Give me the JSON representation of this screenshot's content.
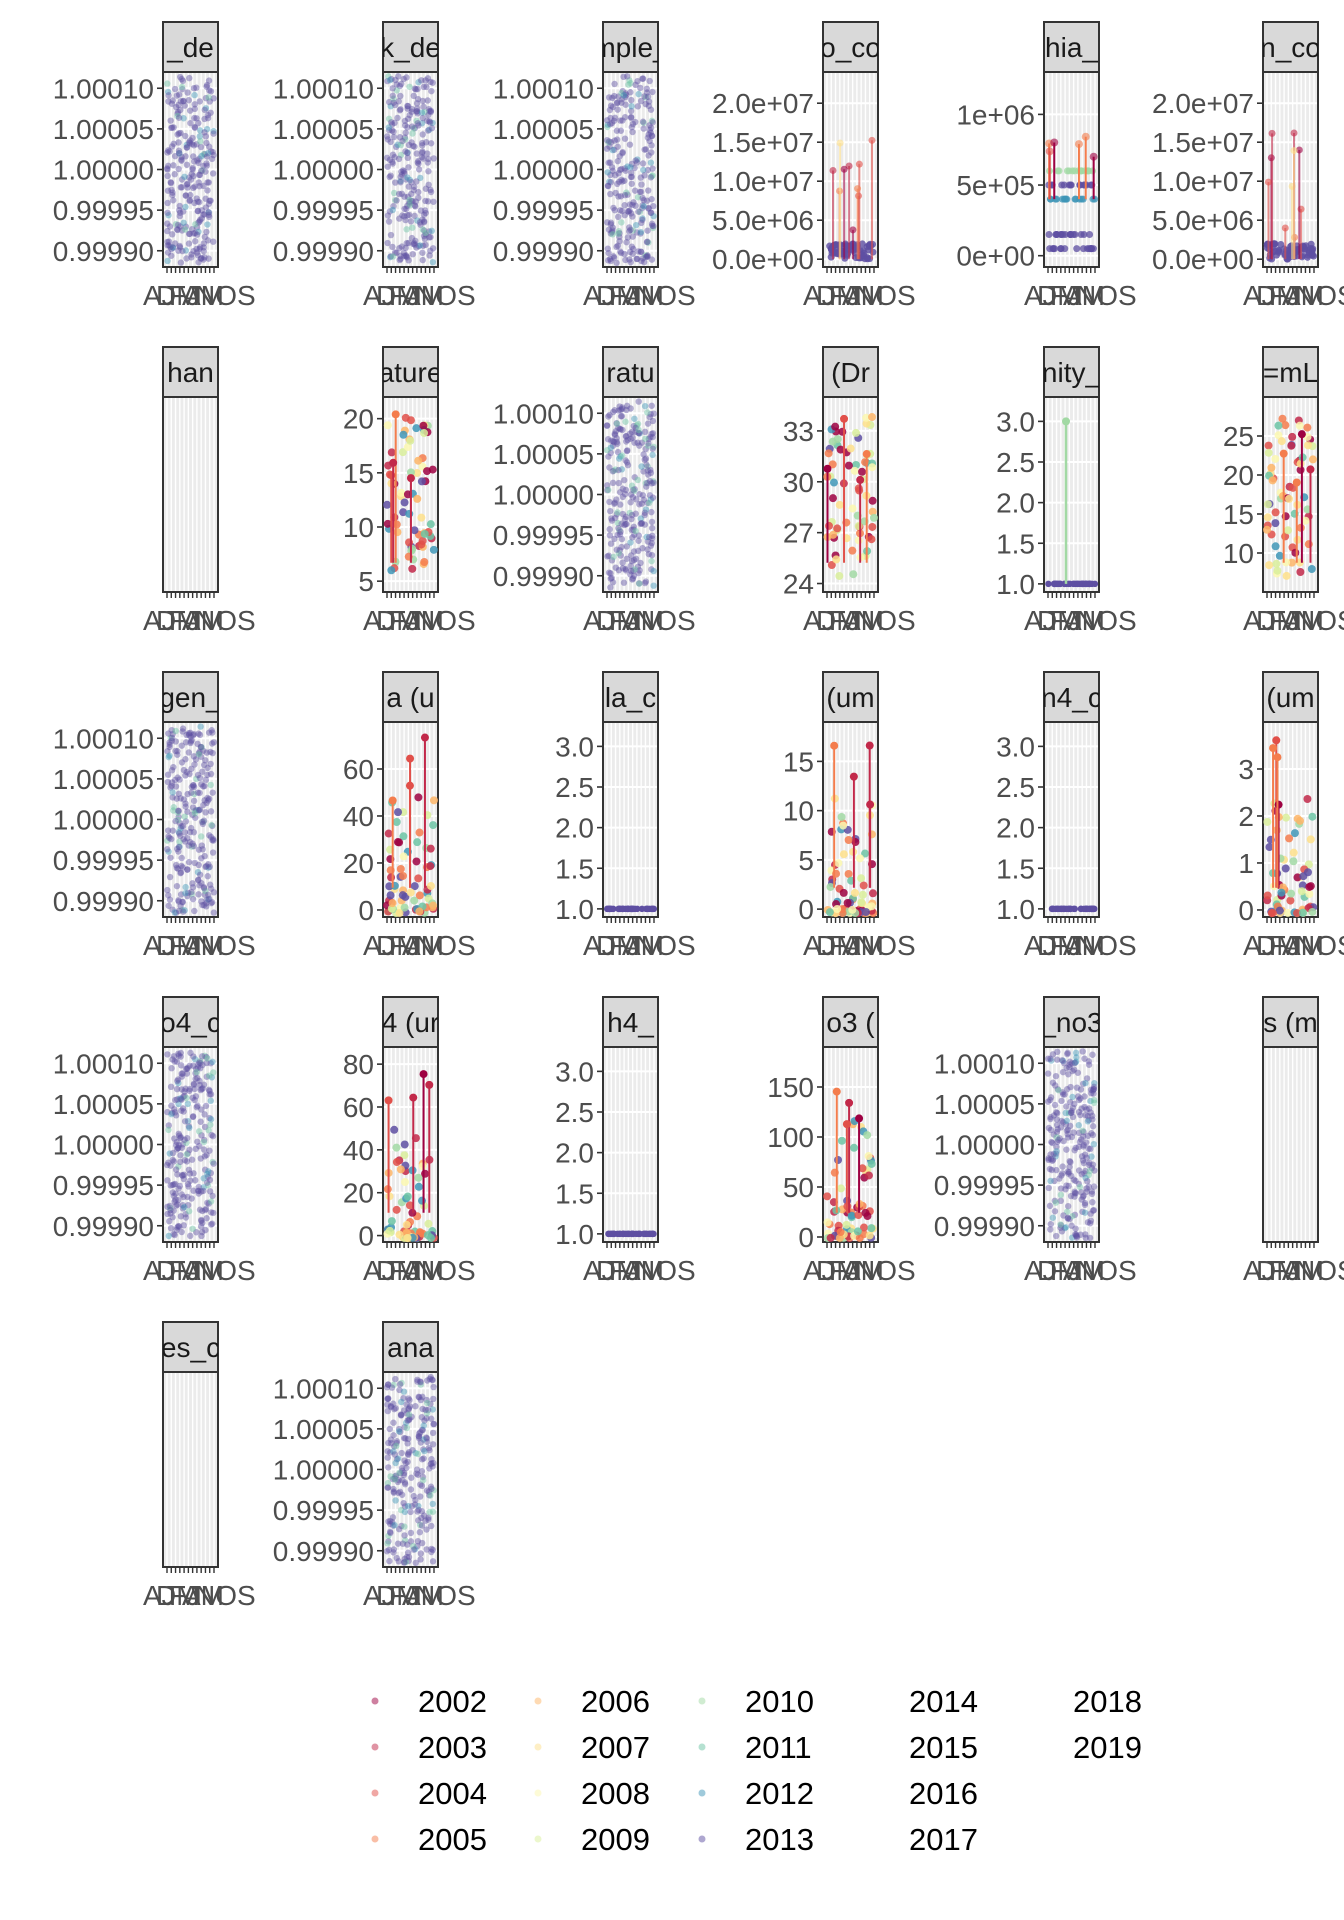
{
  "colors": {
    "panel_bg": "#ebebeb",
    "grid": "#ffffff",
    "strip_bg": "#d9d9d9",
    "strip_border": "#333333",
    "axis_text": "#4d4d4d"
  },
  "chart_data": {
    "type": "scatter",
    "layout": {
      "rows": 5,
      "cols": 6
    },
    "legend": {
      "placement": "bottom",
      "entries": [
        {
          "label": "2002",
          "color": "#9e0142"
        },
        {
          "label": "2003",
          "color": "#c2294a"
        },
        {
          "label": "2004",
          "color": "#e1504a"
        },
        {
          "label": "2005",
          "color": "#f47d4d"
        },
        {
          "label": "2006",
          "color": "#fdb567"
        },
        {
          "label": "2007",
          "color": "#fee08b"
        },
        {
          "label": "2008",
          "color": "#fbf8b0"
        },
        {
          "label": "2009",
          "color": "#d9ef9b"
        },
        {
          "label": "2010",
          "color": "#a2d9a4"
        },
        {
          "label": "2011",
          "color": "#6cc4a4"
        },
        {
          "label": "2012",
          "color": "#3f96b7"
        },
        {
          "label": "2013",
          "color": "#5e4fa2"
        },
        {
          "label": "2014",
          "color": ""
        },
        {
          "label": "2015",
          "color": ""
        },
        {
          "label": "2016",
          "color": ""
        },
        {
          "label": "2017",
          "color": ""
        },
        {
          "label": "2018",
          "color": ""
        },
        {
          "label": "2019",
          "color": ""
        }
      ]
    },
    "x_tick_text": "AJDMFJAMNOS",
    "x_tick_count": 12,
    "panels": [
      {
        "strip": "_de",
        "ylim": [
          0.99988,
          1.00012
        ],
        "ticks": [
          "1.00010",
          "1.00005",
          "1.00000",
          "0.99995",
          "0.99990"
        ],
        "tick_values": [
          1.0001,
          1.00005,
          1.0,
          0.99995,
          0.9999
        ],
        "style": "dense"
      },
      {
        "strip": "k_de",
        "ylim": [
          0.99988,
          1.00012
        ],
        "ticks": [
          "1.00010",
          "1.00005",
          "1.00000",
          "0.99995",
          "0.99990"
        ],
        "tick_values": [
          1.0001,
          1.00005,
          1.0,
          0.99995,
          0.9999
        ],
        "style": "dense"
      },
      {
        "strip": "mple_",
        "ylim": [
          0.99988,
          1.00012
        ],
        "ticks": [
          "1.00010",
          "1.00005",
          "1.00000",
          "0.99995",
          "0.99990"
        ],
        "tick_values": [
          1.0001,
          1.00005,
          1.0,
          0.99995,
          0.9999
        ],
        "style": "dense"
      },
      {
        "strip": "o_co",
        "ylim": [
          -1000000,
          24000000
        ],
        "ticks": [
          "2.0e+07",
          "1.5e+07",
          "1.0e+07",
          "5.0e+06",
          "0.0e+00"
        ],
        "tick_values": [
          20000000,
          15000000,
          10000000,
          5000000,
          0
        ],
        "style": "lowspikes"
      },
      {
        "strip": "hia_",
        "ylim": [
          -80000,
          1300000
        ],
        "ticks": [
          "1e+06",
          "5e+05",
          "0e+00"
        ],
        "tick_values": [
          1000000,
          500000,
          0
        ],
        "style": "bands"
      },
      {
        "strip": "n_co",
        "ylim": [
          -1000000,
          24000000
        ],
        "ticks": [
          "2.0e+07",
          "1.5e+07",
          "1.0e+07",
          "5.0e+06",
          "0.0e+00"
        ],
        "tick_values": [
          20000000,
          15000000,
          10000000,
          5000000,
          0
        ],
        "style": "lowspikes"
      },
      {
        "strip": "han",
        "ylim": [
          0,
          1
        ],
        "ticks": [],
        "tick_values": [],
        "style": "empty"
      },
      {
        "strip": "ature",
        "ylim": [
          4,
          22
        ],
        "ticks": [
          "20",
          "15",
          "10",
          "5"
        ],
        "tick_values": [
          20,
          15,
          10,
          5
        ],
        "style": "scatter"
      },
      {
        "strip": "ratu",
        "ylim": [
          0.99988,
          1.00012
        ],
        "ticks": [
          "1.00010",
          "1.00005",
          "1.00000",
          "0.99995",
          "0.99990"
        ],
        "tick_values": [
          1.0001,
          1.00005,
          1.0,
          0.99995,
          0.9999
        ],
        "style": "dense"
      },
      {
        "strip": "(Dr",
        "ylim": [
          23.5,
          35
        ],
        "ticks": [
          "33",
          "30",
          "27",
          "24"
        ],
        "tick_values": [
          33,
          30,
          27,
          24
        ],
        "style": "scatter"
      },
      {
        "strip": "nity_",
        "ylim": [
          0.9,
          3.3
        ],
        "ticks": [
          "3.0",
          "2.5",
          "2.0",
          "1.5",
          "1.0"
        ],
        "tick_values": [
          3.0,
          2.5,
          2.0,
          1.5,
          1.0
        ],
        "style": "flat"
      },
      {
        "strip": "=mL",
        "ylim": [
          5,
          30
        ],
        "ticks": [
          "25",
          "20",
          "15",
          "10"
        ],
        "tick_values": [
          25,
          20,
          15,
          10
        ],
        "style": "scatter"
      },
      {
        "strip": "gen_",
        "ylim": [
          0.99988,
          1.00012
        ],
        "ticks": [
          "1.00010",
          "1.00005",
          "1.00000",
          "0.99995",
          "0.99990"
        ],
        "tick_values": [
          1.0001,
          1.00005,
          1.0,
          0.99995,
          0.9999
        ],
        "style": "dense"
      },
      {
        "strip": "a (u",
        "ylim": [
          -3,
          80
        ],
        "ticks": [
          "60",
          "40",
          "20",
          "0"
        ],
        "tick_values": [
          60,
          40,
          20,
          0
        ],
        "style": "lowscatter"
      },
      {
        "strip": "la_c",
        "ylim": [
          0.9,
          3.3
        ],
        "ticks": [
          "3.0",
          "2.5",
          "2.0",
          "1.5",
          "1.0"
        ],
        "tick_values": [
          3.0,
          2.5,
          2.0,
          1.5,
          1.0
        ],
        "style": "flat"
      },
      {
        "strip": "(um",
        "ylim": [
          -0.8,
          19
        ],
        "ticks": [
          "15",
          "10",
          "5",
          "0"
        ],
        "tick_values": [
          15,
          10,
          5,
          0
        ],
        "style": "lowscatter"
      },
      {
        "strip": "n4_c",
        "ylim": [
          0.9,
          3.3
        ],
        "ticks": [
          "3.0",
          "2.5",
          "2.0",
          "1.5",
          "1.0"
        ],
        "tick_values": [
          3.0,
          2.5,
          2.0,
          1.5,
          1.0
        ],
        "style": "flat"
      },
      {
        "strip": "(um",
        "ylim": [
          -0.15,
          4.0
        ],
        "ticks": [
          "3",
          "2",
          "1",
          "0"
        ],
        "tick_values": [
          3,
          2,
          1,
          0
        ],
        "style": "lowscatter"
      },
      {
        "strip": "o4_c",
        "ylim": [
          0.99988,
          1.00012
        ],
        "ticks": [
          "1.00010",
          "1.00005",
          "1.00000",
          "0.99995",
          "0.99990"
        ],
        "tick_values": [
          1.0001,
          1.00005,
          1.0,
          0.99995,
          0.9999
        ],
        "style": "dense"
      },
      {
        "strip": "4 (ur",
        "ylim": [
          -3,
          88
        ],
        "ticks": [
          "80",
          "60",
          "40",
          "20",
          "0"
        ],
        "tick_values": [
          80,
          60,
          40,
          20,
          0
        ],
        "style": "lowscatter"
      },
      {
        "strip": "h4_",
        "ylim": [
          0.9,
          3.3
        ],
        "ticks": [
          "3.0",
          "2.5",
          "2.0",
          "1.5",
          "1.0"
        ],
        "tick_values": [
          3.0,
          2.5,
          2.0,
          1.5,
          1.0
        ],
        "style": "flat"
      },
      {
        "strip": "o3 (",
        "ylim": [
          -5,
          190
        ],
        "ticks": [
          "150",
          "100",
          "50",
          "0"
        ],
        "tick_values": [
          150,
          100,
          50,
          0
        ],
        "style": "lowscatter"
      },
      {
        "strip": "_no3",
        "ylim": [
          0.99988,
          1.00012
        ],
        "ticks": [
          "1.00010",
          "1.00005",
          "1.00000",
          "0.99995",
          "0.99990"
        ],
        "tick_values": [
          1.0001,
          1.00005,
          1.0,
          0.99995,
          0.9999
        ],
        "style": "dense"
      },
      {
        "strip": "s (m",
        "ylim": [
          0,
          1
        ],
        "ticks": [],
        "tick_values": [],
        "style": "empty"
      },
      {
        "strip": "es_c",
        "ylim": [
          0,
          1
        ],
        "ticks": [],
        "tick_values": [],
        "style": "empty"
      },
      {
        "strip": "ana",
        "ylim": [
          0.99988,
          1.00012
        ],
        "ticks": [
          "1.00010",
          "1.00005",
          "1.00000",
          "0.99995",
          "0.99990"
        ],
        "tick_values": [
          1.0001,
          1.00005,
          1.0,
          0.99995,
          0.9999
        ],
        "style": "dense"
      }
    ]
  }
}
